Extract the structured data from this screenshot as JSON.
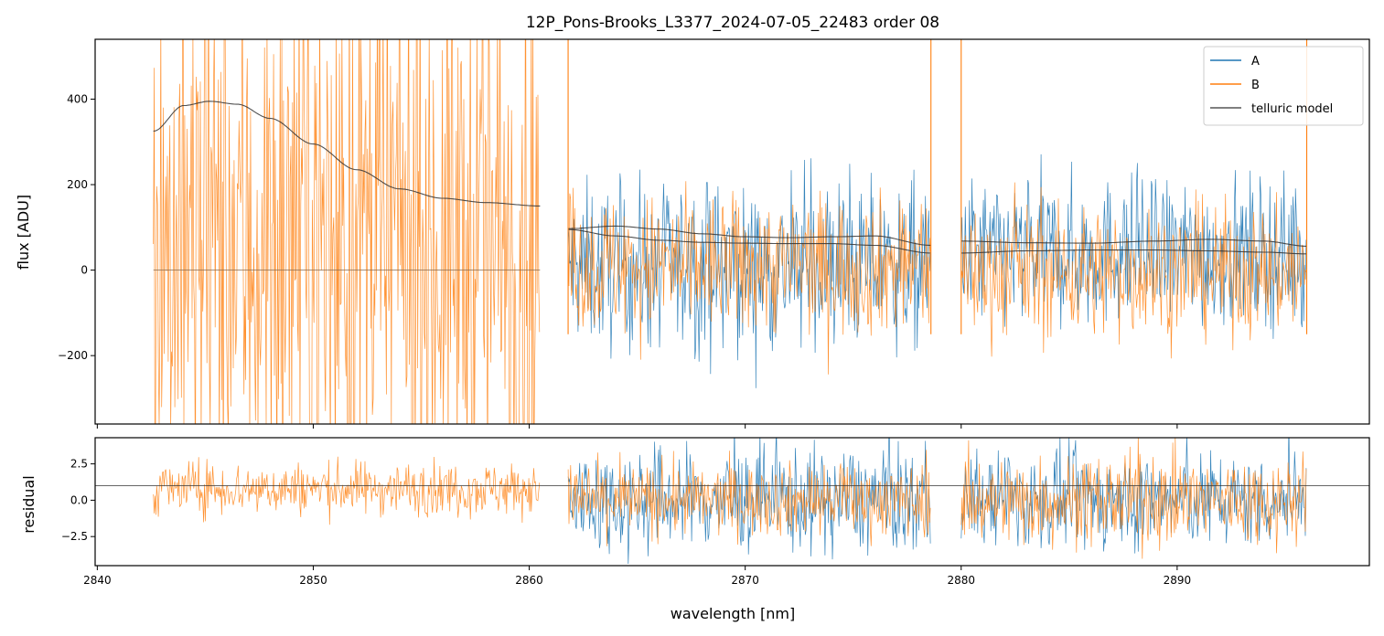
{
  "chart_data": [
    {
      "type": "line",
      "panel": "main",
      "title": "12P_Pons-Brooks_L3377_2024-07-05_22483  order 08",
      "ylabel": "flux [ADU]",
      "xlim": [
        2839.9,
        2898.9
      ],
      "ylim": [
        -360,
        540
      ],
      "yticks": [
        -200,
        0,
        200,
        400
      ],
      "grid": false,
      "legend_loc": "upper right",
      "segments": [
        {
          "x0": 2842.6,
          "x1": 2860.5
        },
        {
          "x0": 2861.8,
          "x1": 2878.6
        },
        {
          "x0": 2880.0,
          "x1": 2896.0
        }
      ],
      "series": [
        {
          "name": "A",
          "color": "#1f77b4",
          "noise_sigma": [
            0,
            95,
            85
          ],
          "offset": [
            0,
            5,
            40
          ]
        },
        {
          "name": "B",
          "color": "#ff7f0e",
          "noise_sigma": [
            330,
            80,
            75
          ],
          "offset": [
            60,
            10,
            -5
          ]
        },
        {
          "name": "telluric model",
          "color": "#555555",
          "curves": [
            {
              "x": [
                2842.6,
                2844.0,
                2845.2,
                2846.5,
                2848.0,
                2850.0,
                2852.0,
                2854.0,
                2856.0,
                2858.0,
                2860.5
              ],
              "y": [
                325,
                385,
                395,
                388,
                355,
                295,
                235,
                190,
                168,
                158,
                150
              ]
            },
            {
              "x": [
                2861.8,
                2864.0,
                2866.0,
                2868.0,
                2870.0,
                2872.0,
                2874.0,
                2876.0,
                2878.6
              ],
              "y": [
                97,
                103,
                96,
                85,
                78,
                76,
                78,
                80,
                58
              ]
            },
            {
              "x": [
                2861.8,
                2864.0,
                2866.0,
                2868.0,
                2870.0,
                2872.0,
                2874.0,
                2876.0,
                2878.6
              ],
              "y": [
                95,
                80,
                70,
                65,
                63,
                62,
                62,
                58,
                40
              ]
            },
            {
              "x": [
                2880.0,
                2883.0,
                2886.0,
                2889.0,
                2891.5,
                2894.0,
                2896.0
              ],
              "y": [
                68,
                64,
                63,
                68,
                72,
                68,
                56
              ]
            },
            {
              "x": [
                2880.0,
                2883.0,
                2886.0,
                2889.0,
                2891.5,
                2894.0,
                2896.0
              ],
              "y": [
                40,
                45,
                47,
                47,
                45,
                42,
                38
              ]
            }
          ]
        }
      ],
      "zero_line": {
        "x": [
          2842.6,
          2860.5
        ],
        "y": 0
      }
    },
    {
      "type": "line",
      "panel": "residual",
      "xlabel": "wavelength [nm]",
      "ylabel": "residual",
      "xlim": [
        2839.9,
        2898.9
      ],
      "ylim": [
        -4.5,
        4.3
      ],
      "xticks": [
        2840,
        2850,
        2860,
        2870,
        2880,
        2890
      ],
      "yticks": [
        -2.5,
        0.0,
        2.5
      ],
      "hline": 1.0,
      "series": [
        {
          "name": "A",
          "color": "#1f77b4",
          "noise_sigma": [
            0,
            1.8,
            1.6
          ]
        },
        {
          "name": "B",
          "color": "#ff7f0e",
          "noise_sigma": [
            0.9,
            1.2,
            1.5
          ]
        }
      ]
    }
  ]
}
